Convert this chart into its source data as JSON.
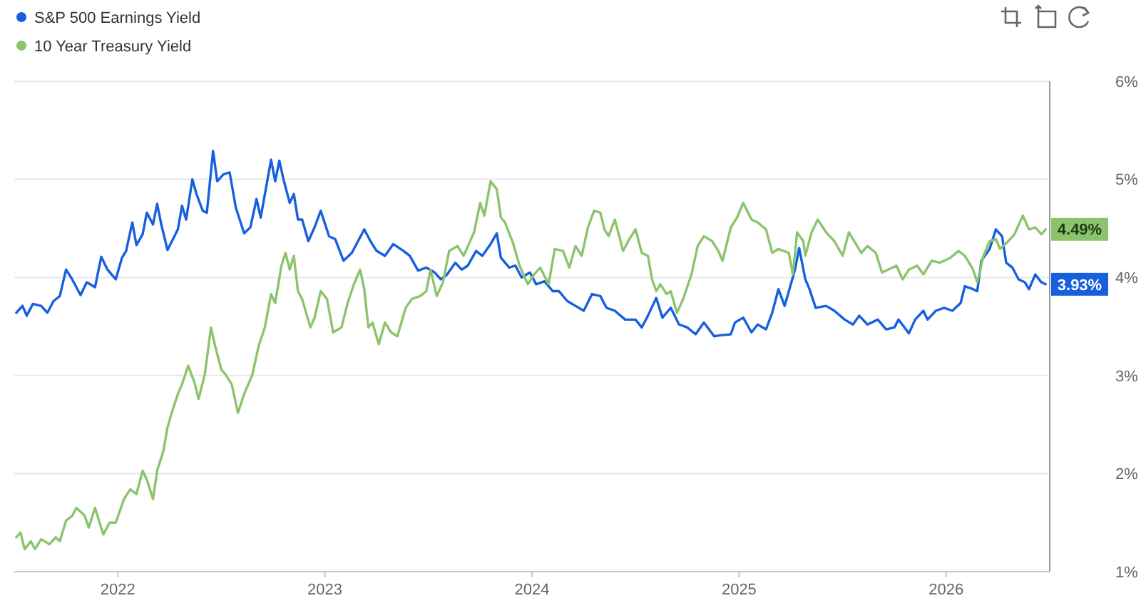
{
  "chart_data": {
    "type": "line",
    "series": [
      {
        "name": "S&P 500 Earnings Yield",
        "color": "#1660e0",
        "x": [
          2021.51,
          2021.54,
          2021.56,
          2021.59,
          2021.63,
          2021.66,
          2021.69,
          2021.72,
          2021.75,
          2021.78,
          2021.82,
          2021.85,
          2021.89,
          2021.92,
          2021.95,
          2021.99,
          2022.02,
          2022.04,
          2022.07,
          2022.09,
          2022.12,
          2022.14,
          2022.17,
          2022.19,
          2022.21,
          2022.24,
          2022.29,
          2022.31,
          2022.33,
          2022.36,
          2022.38,
          2022.41,
          2022.43,
          2022.46,
          2022.48,
          2022.51,
          2022.54,
          2022.57,
          2022.61,
          2022.64,
          2022.67,
          2022.69,
          2022.74,
          2022.76,
          2022.78,
          2022.8,
          2022.83,
          2022.85,
          2022.87,
          2022.89,
          2022.92,
          2022.95,
          2022.98,
          2023.02,
          2023.05,
          2023.09,
          2023.13,
          2023.19,
          2023.22,
          2023.25,
          2023.29,
          2023.33,
          2023.38,
          2023.41,
          2023.45,
          2023.49,
          2023.53,
          2023.56,
          2023.59,
          2023.63,
          2023.66,
          2023.69,
          2023.73,
          2023.76,
          2023.8,
          2023.83,
          2023.85,
          2023.89,
          2023.92,
          2023.95,
          2023.99,
          2024.02,
          2024.06,
          2024.1,
          2024.13,
          2024.17,
          2024.21,
          2024.25,
          2024.29,
          2024.33,
          2024.36,
          2024.4,
          2024.45,
          2024.5,
          2024.53,
          2024.56,
          2024.6,
          2024.63,
          2024.67,
          2024.71,
          2024.75,
          2024.79,
          2024.83,
          2024.88,
          2024.91,
          2024.96,
          2024.98,
          2025.02,
          2025.06,
          2025.09,
          2025.13,
          2025.16,
          2025.19,
          2025.22,
          2025.25,
          2025.27,
          2025.29,
          2025.32,
          2025.34,
          2025.37,
          2025.42,
          2025.46,
          2025.51,
          2025.55,
          2025.58,
          2025.62,
          2025.67,
          2025.71,
          2025.75,
          2025.77,
          2025.82,
          2025.85,
          2025.89,
          2025.91,
          2025.95,
          2025.99,
          2026.03,
          2026.07,
          2026.09,
          2026.13,
          2026.15,
          2026.17,
          2026.21,
          2026.24,
          2026.27,
          2026.29,
          2026.32,
          2026.35,
          2026.38,
          2026.4,
          2026.43,
          2026.46,
          2026.48
        ],
        "values": [
          3.64,
          3.71,
          3.61,
          3.73,
          3.71,
          3.64,
          3.76,
          3.81,
          4.08,
          3.98,
          3.82,
          3.95,
          3.9,
          4.21,
          4.08,
          3.98,
          4.2,
          4.27,
          4.56,
          4.33,
          4.44,
          4.66,
          4.54,
          4.75,
          4.54,
          4.28,
          4.49,
          4.73,
          4.59,
          5.0,
          4.85,
          4.68,
          4.66,
          5.29,
          4.98,
          5.05,
          5.07,
          4.71,
          4.45,
          4.51,
          4.8,
          4.61,
          5.2,
          4.98,
          5.19,
          5.0,
          4.76,
          4.85,
          4.59,
          4.59,
          4.37,
          4.51,
          4.68,
          4.42,
          4.39,
          4.17,
          4.25,
          4.49,
          4.37,
          4.27,
          4.22,
          4.34,
          4.27,
          4.22,
          4.07,
          4.1,
          4.05,
          3.98,
          4.03,
          4.15,
          4.08,
          4.12,
          4.27,
          4.22,
          4.34,
          4.45,
          4.2,
          4.1,
          4.12,
          4.0,
          4.05,
          3.93,
          3.96,
          3.86,
          3.86,
          3.76,
          3.71,
          3.66,
          3.83,
          3.81,
          3.69,
          3.66,
          3.57,
          3.57,
          3.49,
          3.61,
          3.79,
          3.59,
          3.69,
          3.52,
          3.49,
          3.42,
          3.54,
          3.4,
          3.41,
          3.42,
          3.54,
          3.59,
          3.44,
          3.52,
          3.47,
          3.64,
          3.88,
          3.71,
          3.93,
          4.08,
          4.3,
          3.98,
          3.88,
          3.69,
          3.71,
          3.66,
          3.57,
          3.52,
          3.61,
          3.52,
          3.57,
          3.47,
          3.49,
          3.57,
          3.43,
          3.57,
          3.66,
          3.57,
          3.66,
          3.69,
          3.66,
          3.74,
          3.91,
          3.88,
          3.86,
          4.17,
          4.29,
          4.49,
          4.42,
          4.15,
          4.1,
          3.98,
          3.95,
          3.88,
          4.03,
          3.95,
          3.93
        ],
        "value_labels": [
          null,
          null,
          null,
          null,
          null,
          null,
          null,
          null,
          null,
          null,
          null,
          null,
          null,
          null,
          null,
          null,
          null,
          null,
          null,
          null,
          null,
          null,
          null,
          null,
          null,
          null,
          null,
          null,
          null,
          null,
          null,
          null,
          null,
          null,
          null,
          null,
          null,
          null,
          null,
          null,
          null,
          null,
          null,
          null,
          null,
          null,
          null,
          null,
          null,
          null,
          null,
          null,
          null,
          null,
          null,
          null,
          null,
          null,
          null,
          null,
          null,
          null,
          null,
          null,
          null,
          null,
          null,
          null,
          null,
          null,
          null,
          null,
          null,
          null,
          null,
          null,
          null,
          null,
          null,
          null,
          null,
          null,
          null,
          null,
          null,
          null,
          null,
          null,
          null,
          null,
          null,
          null,
          null,
          null,
          null,
          null,
          null,
          null,
          null,
          null,
          null,
          null,
          null,
          null,
          null,
          null,
          null,
          null,
          null,
          null,
          null,
          null,
          null,
          null,
          null,
          null,
          null,
          null,
          null,
          null,
          null,
          null,
          null,
          null,
          null,
          null,
          null,
          null,
          null,
          null,
          null,
          null,
          null,
          null,
          null,
          null,
          null,
          null,
          null,
          null,
          null,
          null,
          null,
          null,
          null,
          null,
          null,
          null,
          null,
          null,
          null,
          null,
          "3.93%"
        ]
      },
      {
        "name": "10 Year Treasury Yield",
        "color": "#8cc46e",
        "x": [
          2021.51,
          2021.53,
          2021.55,
          2021.58,
          2021.6,
          2021.63,
          2021.67,
          2021.7,
          2021.72,
          2021.75,
          2021.78,
          2021.8,
          2021.84,
          2021.86,
          2021.89,
          2021.93,
          2021.96,
          2021.99,
          2022.03,
          2022.06,
          2022.09,
          2022.12,
          2022.14,
          2022.17,
          2022.19,
          2022.22,
          2022.24,
          2022.26,
          2022.29,
          2022.31,
          2022.34,
          2022.37,
          2022.39,
          2022.42,
          2022.45,
          2022.47,
          2022.5,
          2022.52,
          2022.55,
          2022.58,
          2022.61,
          2022.65,
          2022.68,
          2022.71,
          2022.74,
          2022.76,
          2022.79,
          2022.81,
          2022.83,
          2022.85,
          2022.87,
          2022.89,
          2022.93,
          2022.95,
          2022.98,
          2023.01,
          2023.04,
          2023.08,
          2023.11,
          2023.14,
          2023.17,
          2023.19,
          2023.21,
          2023.23,
          2023.26,
          2023.29,
          2023.32,
          2023.35,
          2023.39,
          2023.42,
          2023.46,
          2023.49,
          2023.51,
          2023.54,
          2023.57,
          2023.6,
          2023.64,
          2023.67,
          2023.72,
          2023.75,
          2023.77,
          2023.8,
          2023.83,
          2023.85,
          2023.87,
          2023.91,
          2023.94,
          2023.98,
          2024.01,
          2024.04,
          2024.08,
          2024.11,
          2024.15,
          2024.18,
          2024.21,
          2024.24,
          2024.27,
          2024.3,
          2024.33,
          2024.35,
          2024.37,
          2024.4,
          2024.44,
          2024.47,
          2024.5,
          2024.53,
          2024.56,
          2024.58,
          2024.6,
          2024.62,
          2024.65,
          2024.67,
          2024.7,
          2024.73,
          2024.77,
          2024.8,
          2024.83,
          2024.87,
          2024.9,
          2024.92,
          2024.96,
          2024.99,
          2025.02,
          2025.06,
          2025.09,
          2025.13,
          2025.16,
          2025.19,
          2025.24,
          2025.26,
          2025.28,
          2025.31,
          2025.32,
          2025.35,
          2025.38,
          2025.42,
          2025.46,
          2025.5,
          2025.53,
          2025.57,
          2025.59,
          2025.62,
          2025.66,
          2025.69,
          2025.72,
          2025.76,
          2025.79,
          2025.82,
          2025.86,
          2025.89,
          2025.93,
          2025.97,
          2026.02,
          2026.06,
          2026.09,
          2026.13,
          2026.15,
          2026.18,
          2026.21,
          2026.24,
          2026.26,
          2026.3,
          2026.33,
          2026.37,
          2026.4,
          2026.43,
          2026.46,
          2026.48
        ],
        "values": [
          1.35,
          1.4,
          1.23,
          1.31,
          1.23,
          1.33,
          1.28,
          1.35,
          1.31,
          1.52,
          1.57,
          1.65,
          1.57,
          1.45,
          1.65,
          1.38,
          1.5,
          1.5,
          1.74,
          1.84,
          1.79,
          2.03,
          1.94,
          1.74,
          2.03,
          2.23,
          2.47,
          2.62,
          2.81,
          2.91,
          3.1,
          2.93,
          2.76,
          3.01,
          3.49,
          3.3,
          3.06,
          3.01,
          2.91,
          2.62,
          2.81,
          3.01,
          3.3,
          3.49,
          3.83,
          3.74,
          4.12,
          4.25,
          4.08,
          4.22,
          3.86,
          3.78,
          3.49,
          3.59,
          3.86,
          3.78,
          3.44,
          3.49,
          3.74,
          3.93,
          4.08,
          3.88,
          3.49,
          3.54,
          3.32,
          3.54,
          3.44,
          3.4,
          3.69,
          3.78,
          3.81,
          3.86,
          4.08,
          3.81,
          3.95,
          4.27,
          4.32,
          4.22,
          4.46,
          4.76,
          4.63,
          4.98,
          4.9,
          4.61,
          4.56,
          4.34,
          4.12,
          3.93,
          4.03,
          4.1,
          3.93,
          4.29,
          4.27,
          4.1,
          4.32,
          4.22,
          4.51,
          4.68,
          4.66,
          4.49,
          4.42,
          4.59,
          4.27,
          4.39,
          4.49,
          4.25,
          4.22,
          3.98,
          3.86,
          3.93,
          3.83,
          3.86,
          3.64,
          3.78,
          4.03,
          4.32,
          4.42,
          4.37,
          4.27,
          4.17,
          4.51,
          4.61,
          4.76,
          4.59,
          4.56,
          4.49,
          4.25,
          4.29,
          4.25,
          4.03,
          4.46,
          4.37,
          4.22,
          4.46,
          4.59,
          4.46,
          4.37,
          4.22,
          4.46,
          4.32,
          4.25,
          4.32,
          4.25,
          4.05,
          4.08,
          4.12,
          3.98,
          4.08,
          4.12,
          4.03,
          4.17,
          4.15,
          4.2,
          4.27,
          4.22,
          4.08,
          3.95,
          4.22,
          4.37,
          4.39,
          4.29,
          4.37,
          4.44,
          4.63,
          4.49,
          4.51,
          4.44,
          4.49
        ],
        "value_labels": [
          null,
          null,
          null,
          null,
          null,
          null,
          null,
          null,
          null,
          null,
          null,
          null,
          null,
          null,
          null,
          null,
          null,
          null,
          null,
          null,
          null,
          null,
          null,
          null,
          null,
          null,
          null,
          null,
          null,
          null,
          null,
          null,
          null,
          null,
          null,
          null,
          null,
          null,
          null,
          null,
          null,
          null,
          null,
          null,
          null,
          null,
          null,
          null,
          null,
          null,
          null,
          null,
          null,
          null,
          null,
          null,
          null,
          null,
          null,
          null,
          null,
          null,
          null,
          null,
          null,
          null,
          null,
          null,
          null,
          null,
          null,
          null,
          null,
          null,
          null,
          null,
          null,
          null,
          null,
          null,
          null,
          null,
          null,
          null,
          null,
          null,
          null,
          null,
          null,
          null,
          null,
          null,
          null,
          null,
          null,
          null,
          null,
          null,
          null,
          null,
          null,
          null,
          null,
          null,
          null,
          null,
          null,
          null,
          null,
          null,
          null,
          null,
          null,
          null,
          null,
          null,
          null,
          null,
          null,
          null,
          null,
          null,
          null,
          null,
          null,
          null,
          null,
          null,
          null,
          null,
          null,
          null,
          null,
          null,
          null,
          null,
          null,
          null,
          null,
          null,
          null,
          null,
          null,
          null,
          null,
          null,
          null,
          null,
          null,
          null,
          null,
          null,
          null,
          null,
          null,
          null,
          null,
          null,
          null,
          null,
          null,
          null,
          null,
          null,
          null,
          null,
          null,
          "4.49%"
        ]
      }
    ],
    "xlim": [
      2021.5,
      2026.5
    ],
    "xticks": [
      2022,
      2023,
      2024,
      2025,
      2026
    ],
    "ylim": [
      1,
      6
    ],
    "yticks": [
      {
        "value": 1,
        "label": "1%"
      },
      {
        "value": 2,
        "label": "2%"
      },
      {
        "value": 3,
        "label": "3%"
      },
      {
        "value": 4,
        "label": "4%"
      },
      {
        "value": 5,
        "label": "5%"
      },
      {
        "value": 6,
        "label": "6%"
      }
    ],
    "grid": "y",
    "legend": "top left"
  }
}
